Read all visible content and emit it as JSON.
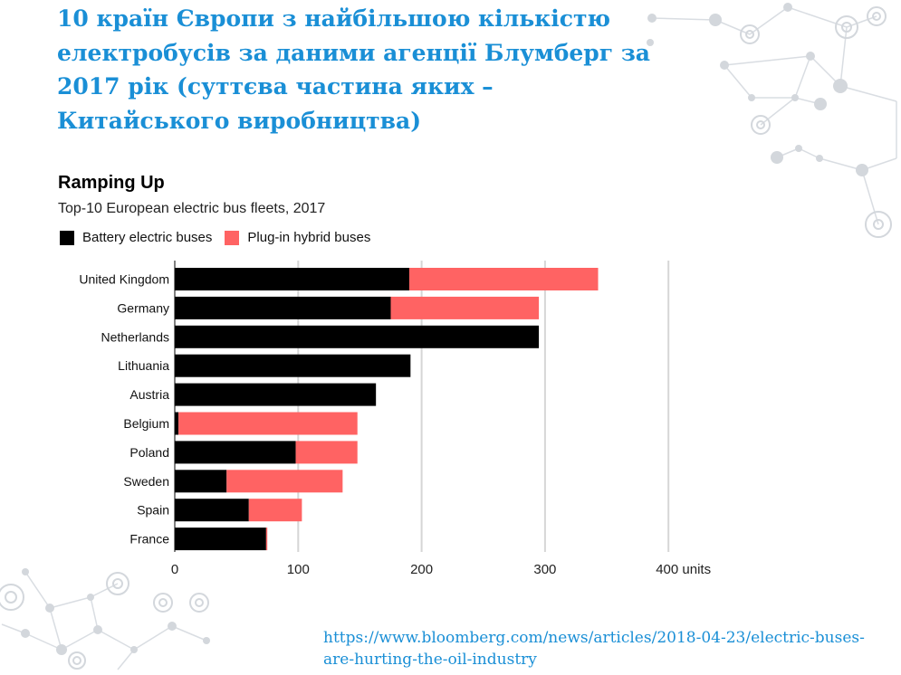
{
  "slide": {
    "title": "10 країн Європи з найбільшою кількістю електробусів за даними агенції Блумберг за 2017 рік (суттєва частина яких – Китайського виробництва)",
    "source": "https://www.bloomberg.com/news/articles/2018-04-23/electric-buses-are-hurting-the-oil-industry"
  },
  "chart_data": {
    "type": "bar",
    "orientation": "horizontal",
    "stacked": true,
    "title": "Ramping Up",
    "subtitle": "Top-10 European electric bus fleets, 2017",
    "categories": [
      "United Kingdom",
      "Germany",
      "Netherlands",
      "Lithuania",
      "Austria",
      "Belgium",
      "Poland",
      "Sweden",
      "Spain",
      "France"
    ],
    "series": [
      {
        "name": "Battery electric buses",
        "color": "#000000",
        "values": [
          190,
          175,
          295,
          191,
          163,
          3,
          98,
          42,
          60,
          74
        ]
      },
      {
        "name": "Plug-in hybrid buses",
        "color": "#ff6363",
        "values": [
          153,
          120,
          0,
          0,
          0,
          145,
          50,
          94,
          43,
          1
        ]
      }
    ],
    "xlim": [
      0,
      400
    ],
    "xticks": [
      "0",
      "100",
      "200",
      "300",
      "400 units"
    ],
    "grid": true,
    "legend_position": "top-left"
  },
  "decoration": {
    "network_color": "#d7dbe0"
  }
}
